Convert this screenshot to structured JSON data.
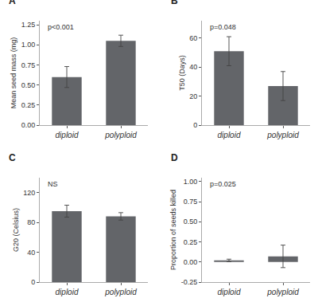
{
  "chart_data": [
    {
      "type": "bar",
      "title": "A",
      "ylabel": "Mean seed mass (mg)",
      "categories": [
        "diploid",
        "polyploid"
      ],
      "values": [
        0.6,
        1.05
      ],
      "errors": [
        0.13,
        0.07
      ],
      "color": "#636569",
      "ylim": [
        0,
        1.3
      ],
      "yticks": [
        {
          "value": 0.0,
          "label": "0.00"
        },
        0.25,
        {
          "value": 0.5,
          "label": "0.50"
        },
        0.75,
        {
          "value": 1.0,
          "label": "1.00"
        },
        1.25
      ],
      "annotations": [
        "p<0.001"
      ],
      "grid": false
    },
    {
      "type": "bar",
      "title": "B",
      "ylabel": "T50 (Days)",
      "categories": [
        "diploid",
        "polyploid"
      ],
      "values": [
        51,
        27
      ],
      "errors": [
        10,
        10
      ],
      "color": "#636569",
      "ylim": [
        0,
        72
      ],
      "yticks": [
        0,
        20,
        40,
        60
      ],
      "annotations": [
        "p=0.048"
      ],
      "grid": false
    },
    {
      "type": "bar",
      "title": "C",
      "ylabel": "G20 (Celsius)",
      "categories": [
        "diploid",
        "polyploid"
      ],
      "values": [
        95,
        88
      ],
      "errors": [
        8,
        5
      ],
      "color": "#636569",
      "ylim": [
        0,
        140
      ],
      "yticks": [
        0,
        40,
        80,
        120
      ],
      "annotations": [
        "NS"
      ],
      "grid": false
    },
    {
      "type": "bar",
      "title": "D",
      "ylabel": "Proportion of seeds killed",
      "categories": [
        "diploid",
        "polyploid"
      ],
      "values": [
        0.02,
        0.07
      ],
      "errors": [
        0.015,
        0.14
      ],
      "color": "#636569",
      "ylim": [
        -0.25,
        1.05
      ],
      "yticks": [
        -0.25,
        {
          "value": 0.0,
          "label": "0.00"
        },
        0.25,
        {
          "value": 0.5,
          "label": "0.50"
        },
        0.75,
        {
          "value": 1.0,
          "label": "1.00"
        }
      ],
      "annotations": [
        "p=0.025"
      ],
      "grid": false
    }
  ]
}
